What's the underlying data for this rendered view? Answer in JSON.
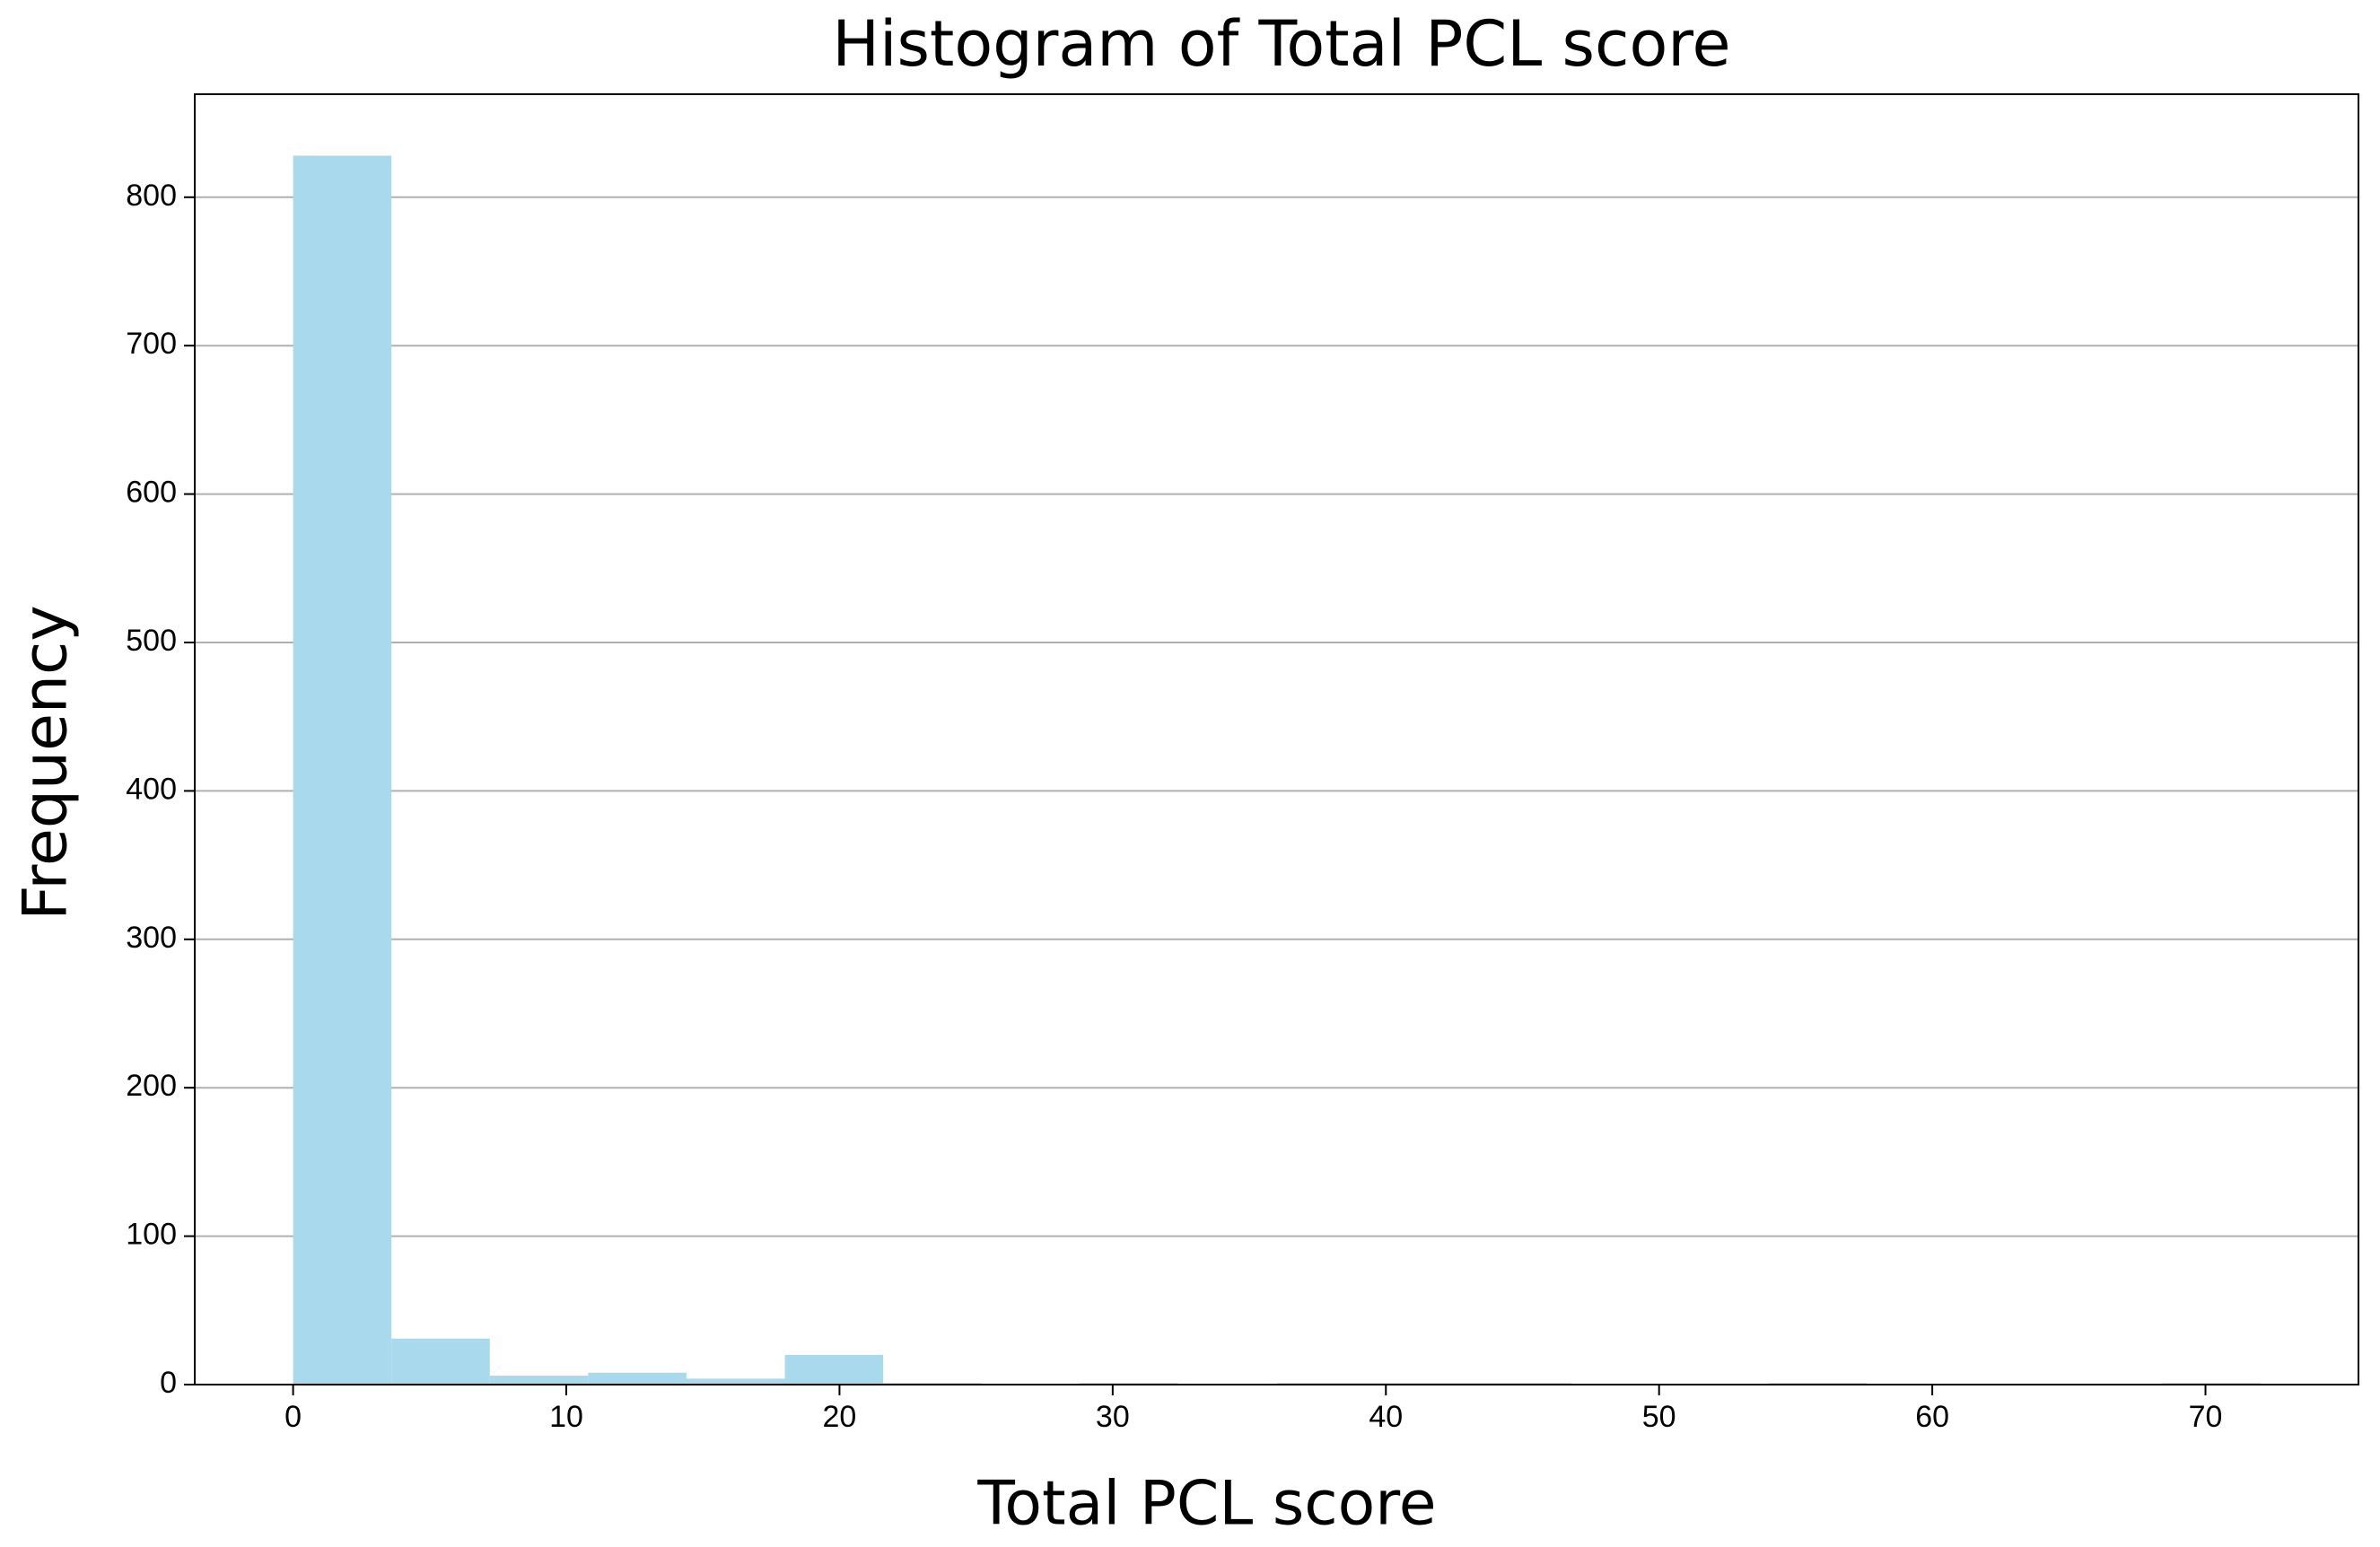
{
  "chart_data": {
    "type": "histogram",
    "title": "Histogram of Total PCL score",
    "xlabel": "Total PCL score",
    "ylabel": "Frequency",
    "bins": [
      0,
      3.6,
      7.2,
      10.8,
      14.4,
      18,
      21.6,
      25.2,
      28.8,
      32.4,
      36,
      39.6,
      43.2,
      46.8,
      50.4,
      54,
      57.6,
      61.2,
      64.8,
      68.4,
      72
    ],
    "values": [
      828,
      31,
      6,
      8,
      4,
      20,
      1,
      0,
      1,
      0,
      1,
      1,
      1,
      0,
      0,
      1,
      0,
      0,
      0,
      1
    ],
    "color": "#a8d9ec",
    "xlim": [
      -3.6,
      75.6
    ],
    "ylim": [
      0,
      869.4
    ],
    "xticks": [
      0,
      10,
      20,
      30,
      40,
      50,
      60,
      70
    ],
    "yticks": [
      0,
      100,
      200,
      300,
      400,
      500,
      600,
      700,
      800
    ],
    "grid": "y"
  }
}
